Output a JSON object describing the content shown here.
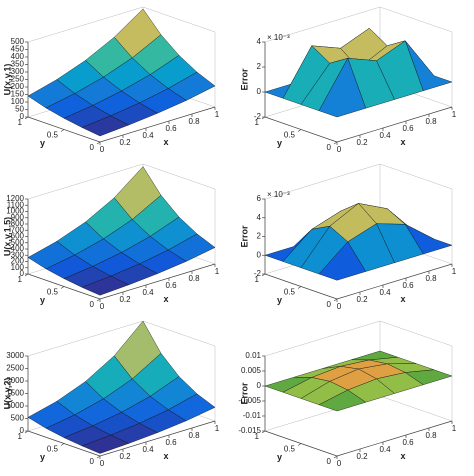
{
  "chart_data": [
    {
      "type": "surface",
      "zlabel": "U(x,y,1)",
      "xlabel": "x",
      "ylabel": "y",
      "x": [
        0,
        0.25,
        0.5,
        0.75,
        1
      ],
      "y": [
        0,
        0.25,
        0.5,
        0.75,
        1
      ],
      "xlim": [
        0,
        1
      ],
      "ylim": [
        0,
        1
      ],
      "zlim": [
        0,
        500
      ],
      "xticks": [
        0,
        0.2,
        0.4,
        0.6,
        0.8,
        1
      ],
      "yticks": [
        0,
        0.5,
        1
      ],
      "zticks": [
        0,
        50,
        100,
        150,
        200,
        250,
        300,
        350,
        400,
        450,
        500
      ],
      "z": [
        [
          40,
          55,
          75,
          102,
          140
        ],
        [
          55,
          75,
          102,
          140,
          191
        ],
        [
          75,
          102,
          140,
          191,
          261
        ],
        [
          102,
          140,
          191,
          261,
          357
        ],
        [
          140,
          191,
          261,
          357,
          487
        ]
      ],
      "colors": [
        "#352a87",
        "#0f5cdd",
        "#1481d6",
        "#06a4ca",
        "#2eb7a4",
        "#87bf77",
        "#d1bb59",
        "#fec832",
        "#f9fb0e"
      ]
    },
    {
      "type": "surface",
      "zlabel": "Error",
      "xlabel": "x",
      "ylabel": "y",
      "multiplier": "× 10⁻³",
      "x": [
        0,
        0.25,
        0.5,
        0.75,
        1
      ],
      "y": [
        0,
        0.25,
        0.5,
        0.75,
        1
      ],
      "xlim": [
        0,
        1
      ],
      "ylim": [
        0,
        1
      ],
      "zlim": [
        -2,
        4
      ],
      "xticks": [
        0,
        0.2,
        0.4,
        0.6,
        0.8,
        1
      ],
      "yticks": [
        0,
        0.5,
        1
      ],
      "zticks": [
        -2,
        0,
        2,
        4
      ],
      "z": [
        [
          0,
          0,
          0,
          0,
          0
        ],
        [
          0,
          3.5,
          2.6,
          3.5,
          0
        ],
        [
          0,
          2.6,
          1.5,
          2.6,
          0
        ],
        [
          0,
          3.5,
          2.6,
          3.5,
          0
        ],
        [
          0,
          0,
          0,
          0,
          0
        ]
      ],
      "colors": [
        "#352a87",
        "#0f5cdd",
        "#1481d6",
        "#06a4ca",
        "#2eb7a4",
        "#87bf77",
        "#d1bb59",
        "#fec832",
        "#f9fb0e"
      ]
    },
    {
      "type": "surface",
      "zlabel": "U(x,y,1.5)",
      "xlabel": "x",
      "ylabel": "y",
      "x": [
        0,
        0.25,
        0.5,
        0.75,
        1
      ],
      "y": [
        0,
        0.25,
        0.5,
        0.75,
        1
      ],
      "xlim": [
        0,
        1
      ],
      "ylim": [
        0,
        1
      ],
      "zlim": [
        0,
        1200
      ],
      "xticks": [
        0,
        0.2,
        0.4,
        0.6,
        0.8,
        1
      ],
      "yticks": [
        0,
        0.5,
        1
      ],
      "zticks": [
        0,
        100,
        200,
        300,
        400,
        500,
        600,
        700,
        800,
        900,
        1000,
        1100,
        1200
      ],
      "z": [
        [
          60,
          87,
          126,
          182,
          264
        ],
        [
          87,
          126,
          182,
          264,
          382
        ],
        [
          126,
          182,
          264,
          382,
          552
        ],
        [
          182,
          264,
          382,
          552,
          800
        ],
        [
          264,
          382,
          552,
          800,
          1158
        ]
      ],
      "colors": [
        "#352a87",
        "#0f5cdd",
        "#1481d6",
        "#06a4ca",
        "#2eb7a4",
        "#87bf77",
        "#d1bb59",
        "#fec832",
        "#f9fb0e"
      ]
    },
    {
      "type": "surface",
      "zlabel": "Error",
      "xlabel": "x",
      "ylabel": "y",
      "multiplier": "× 10⁻³",
      "x": [
        0,
        0.25,
        0.5,
        0.75,
        1
      ],
      "y": [
        0,
        0.25,
        0.5,
        0.75,
        1
      ],
      "xlim": [
        0,
        1
      ],
      "ylim": [
        0,
        1
      ],
      "zlim": [
        -2,
        6
      ],
      "xticks": [
        0,
        0.2,
        0.4,
        0.6,
        0.8,
        1
      ],
      "yticks": [
        0,
        0.5,
        1
      ],
      "zticks": [
        -2,
        0,
        2,
        4,
        6
      ],
      "z": [
        [
          0,
          0,
          0,
          0,
          0
        ],
        [
          0,
          2.5,
          3.5,
          2.5,
          0
        ],
        [
          0,
          3.5,
          5,
          3.5,
          0
        ],
        [
          0,
          2.5,
          3.5,
          2.5,
          0
        ],
        [
          0,
          0,
          0,
          0,
          0
        ]
      ],
      "colors": [
        "#352a87",
        "#0f5cdd",
        "#1481d6",
        "#06a4ca",
        "#2eb7a4",
        "#87bf77",
        "#d1bb59",
        "#fec832",
        "#f9fb0e"
      ]
    },
    {
      "type": "surface",
      "zlabel": "U(x,y,2)",
      "xlabel": "x",
      "ylabel": "y",
      "x": [
        0,
        0.25,
        0.5,
        0.75,
        1
      ],
      "y": [
        0,
        0.25,
        0.5,
        0.75,
        1
      ],
      "xlim": [
        0,
        1
      ],
      "ylim": [
        0,
        1
      ],
      "zlim": [
        0,
        3000
      ],
      "xticks": [
        0,
        0.2,
        0.4,
        0.6,
        0.8,
        1
      ],
      "yticks": [
        0,
        0.5,
        1
      ],
      "zticks": [
        0,
        500,
        1000,
        1500,
        2000,
        2500,
        3000
      ],
      "z": [
        [
          100,
          153,
          234,
          358,
          547
        ],
        [
          153,
          234,
          358,
          547,
          837
        ],
        [
          234,
          358,
          547,
          837,
          1281
        ],
        [
          358,
          547,
          837,
          1281,
          1959
        ],
        [
          547,
          837,
          1281,
          1959,
          2996
        ]
      ],
      "colors": [
        "#352a87",
        "#0f5cdd",
        "#1481d6",
        "#06a4ca",
        "#2eb7a4",
        "#87bf77",
        "#d1bb59",
        "#fec832",
        "#f9fb0e"
      ]
    },
    {
      "type": "surface",
      "zlabel": "Error",
      "xlabel": "x",
      "ylabel": "y",
      "x": [
        0,
        0.25,
        0.5,
        0.75,
        1
      ],
      "y": [
        0,
        0.25,
        0.5,
        0.75,
        1
      ],
      "xlim": [
        0,
        1
      ],
      "ylim": [
        0,
        1
      ],
      "zlim": [
        -0.015,
        0.01
      ],
      "xticks": [
        0,
        0.2,
        0.4,
        0.6,
        0.8,
        1
      ],
      "yticks": [
        0,
        0.5,
        1
      ],
      "zticks": [
        -0.015,
        -0.01,
        -0.005,
        0,
        0.005,
        0.01
      ],
      "z": [
        [
          0,
          0,
          0,
          0,
          0
        ],
        [
          0,
          0.002,
          0.0028,
          0.002,
          0
        ],
        [
          0,
          0.0028,
          0.004,
          0.0028,
          0
        ],
        [
          0,
          0.002,
          0.0028,
          0.002,
          0
        ],
        [
          0,
          0,
          0,
          0,
          0
        ]
      ],
      "colors": [
        "#3a9a3a",
        "#9cc24a",
        "#e0a84a",
        "#d8782a"
      ]
    }
  ]
}
